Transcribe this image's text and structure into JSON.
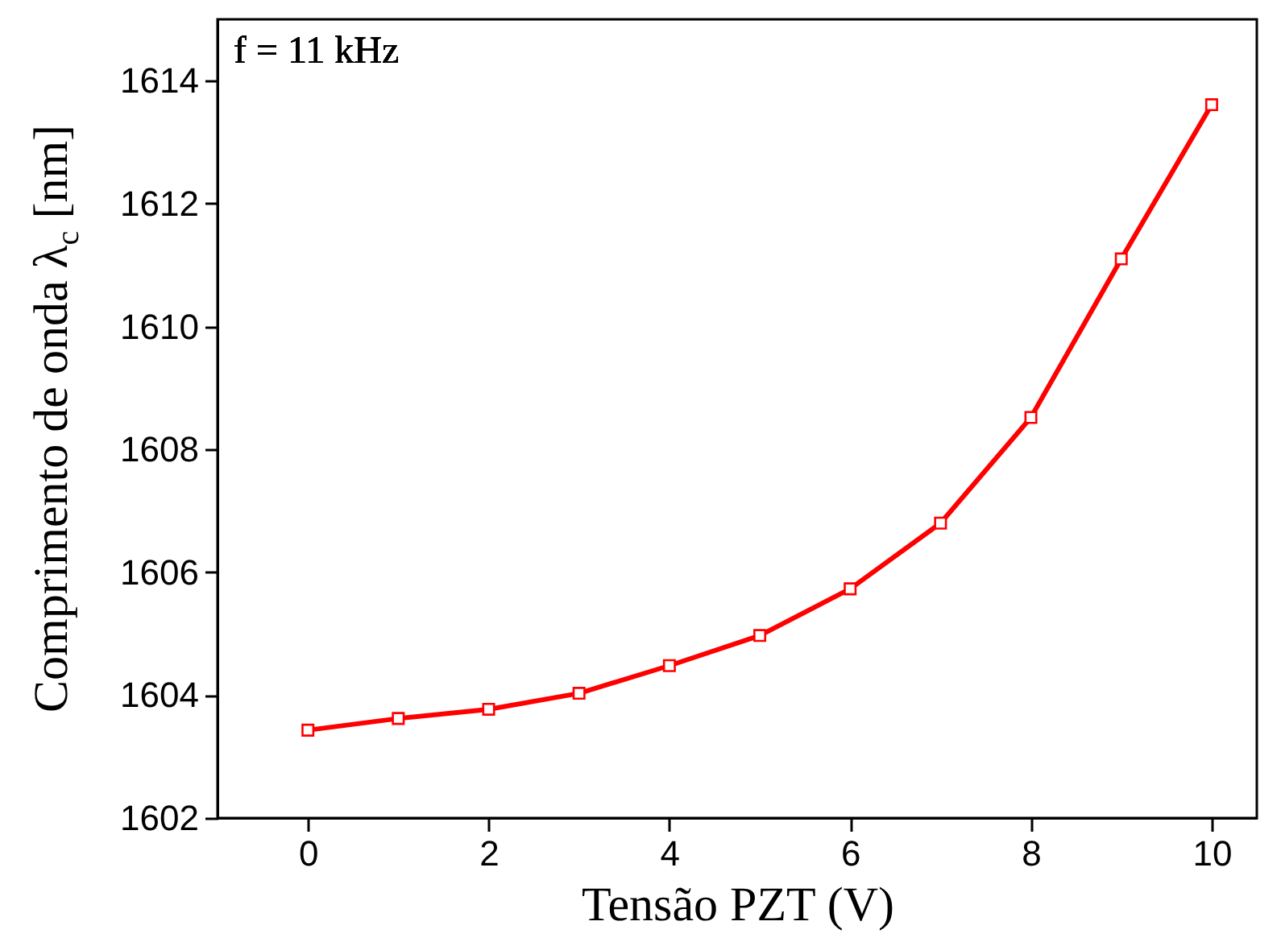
{
  "chart_data": {
    "type": "line",
    "xlabel": "Tensão PZT (V)",
    "ylabel": "Comprimento de onda λ$_{c}$ [nm]",
    "annotations": [
      "f = 11 kHz"
    ],
    "x": [
      0,
      1,
      2,
      3,
      4,
      5,
      6,
      7,
      8,
      9,
      10
    ],
    "series": [
      {
        "color": "#ff0000",
        "values": [
          1603.43,
          1603.62,
          1603.77,
          1604.03,
          1604.48,
          1604.97,
          1605.73,
          1606.8,
          1608.52,
          1611.1,
          1613.61
        ]
      }
    ],
    "xlim": [
      -1,
      10.5
    ],
    "xticks": [
      0,
      2,
      4,
      6,
      8,
      10
    ],
    "ylim": [
      1602,
      1615
    ],
    "yticks": [
      1602,
      1604,
      1606,
      1608,
      1610,
      1612,
      1614
    ],
    "grid": false,
    "marker": "square",
    "line_style": "solid"
  }
}
